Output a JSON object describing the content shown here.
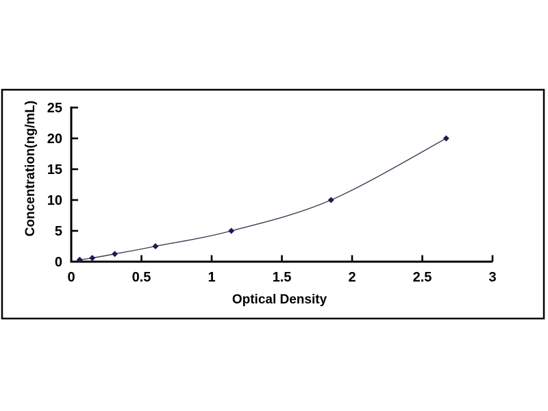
{
  "figure": {
    "background": "#ffffff",
    "frame_border_color": "#000000",
    "axis_color": "#000000",
    "text_color": "#000000"
  },
  "chart_data": {
    "type": "line",
    "title": "",
    "xlabel": "Optical Density",
    "ylabel": "Concentration(ng/mL)",
    "x": [
      0.06,
      0.15,
      0.31,
      0.6,
      1.14,
      1.85,
      2.67
    ],
    "y": [
      0.3,
      0.6,
      1.25,
      2.5,
      5,
      10,
      20
    ],
    "x_axis": {
      "range": [
        0,
        3
      ],
      "tick_values": [
        0,
        0.5,
        1,
        1.5,
        2,
        2.5,
        3
      ],
      "tick_labels": [
        "0",
        "0.5",
        "1",
        "1.5",
        "2",
        "2.5",
        "3"
      ]
    },
    "y_axis": {
      "range": [
        0,
        25
      ],
      "tick_values": [
        0,
        5,
        10,
        15,
        20,
        25
      ],
      "tick_labels": [
        "0",
        "5",
        "10",
        "15",
        "20",
        "25"
      ]
    },
    "grid": false,
    "legend": "none",
    "line": {
      "smooth": true,
      "color": "#3d3d55",
      "width": 1.4
    },
    "marker": {
      "shape": "diamond",
      "color": "#1b1b55",
      "size": 9
    }
  }
}
